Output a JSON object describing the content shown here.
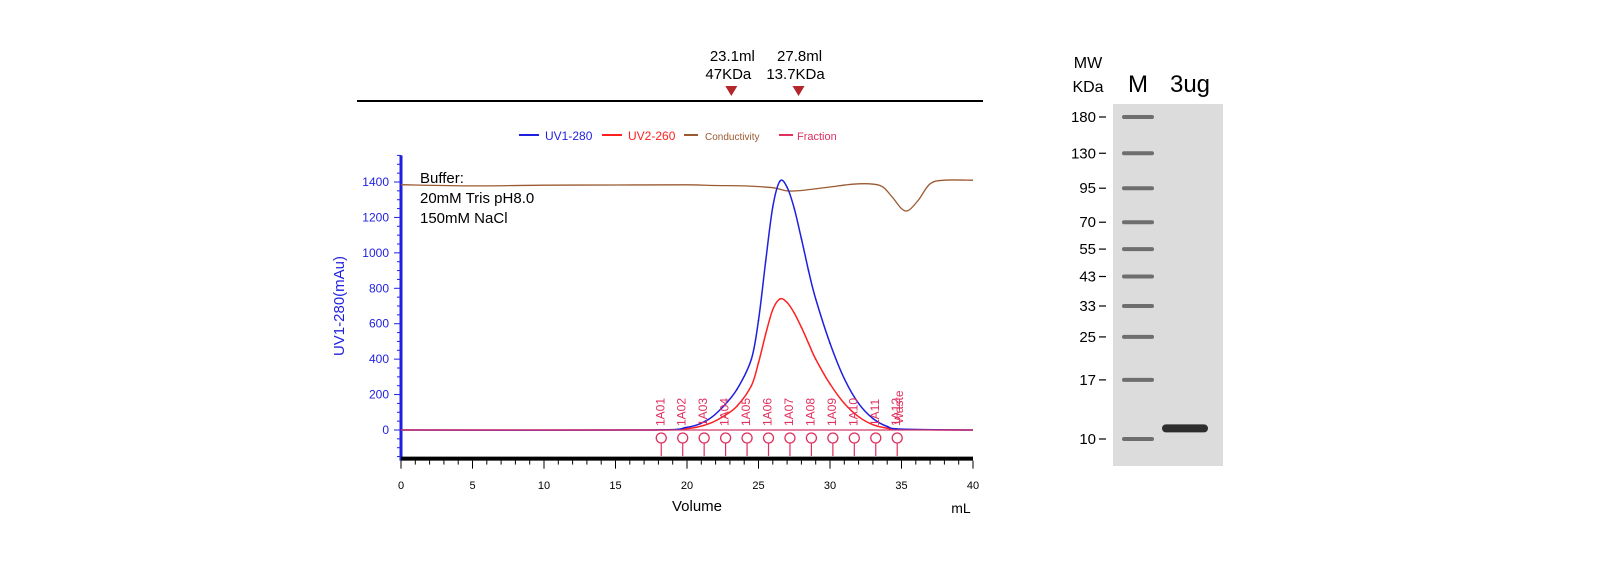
{
  "chart_data": [
    {
      "type": "line",
      "xlabel": "Volume",
      "xunit": "mL",
      "ylabel": "UV1-280(mAu)",
      "xlim": [
        0,
        40
      ],
      "ylim": [
        -150,
        1550
      ],
      "x_ticks": [
        0,
        5,
        10,
        15,
        20,
        25,
        30,
        35,
        40
      ],
      "y_ticks": [
        0,
        200,
        400,
        600,
        800,
        1000,
        1200,
        1400
      ],
      "legend": {
        "position": "top-center",
        "items": [
          "UV1-280",
          "UV2-260",
          "Conductivity",
          "Fraction"
        ]
      },
      "annotation": {
        "lines": [
          "Buffer:",
          "20mM Tris pH8.0",
          "150mM NaCl"
        ]
      },
      "markers": [
        {
          "volume": 23.1,
          "line1": "23.1ml",
          "line2": "47KDa"
        },
        {
          "volume": 27.8,
          "line1": "27.8ml",
          "line2": "13.7KDa"
        }
      ],
      "series": [
        {
          "name": "UV1-280",
          "color": "#1f1fe0",
          "x": [
            0,
            17,
            20,
            21.5,
            22.5,
            23.5,
            24.5,
            25,
            25.5,
            26,
            26.5,
            27,
            27.5,
            28,
            28.5,
            29,
            30,
            31,
            32,
            33,
            34,
            35,
            40
          ],
          "y": [
            0,
            0,
            15,
            60,
            130,
            230,
            400,
            620,
            950,
            1260,
            1405,
            1370,
            1250,
            1080,
            900,
            740,
            490,
            290,
            150,
            65,
            20,
            5,
            0
          ]
        },
        {
          "name": "UV2-260",
          "color": "#ff2020",
          "x": [
            0,
            17,
            20,
            21.5,
            22.5,
            23.5,
            24.5,
            25,
            25.5,
            26,
            26.5,
            27,
            27.5,
            28,
            28.5,
            29,
            30,
            31,
            32,
            33,
            34,
            35,
            40
          ],
          "y": [
            0,
            0,
            8,
            35,
            75,
            135,
            250,
            380,
            540,
            680,
            740,
            720,
            660,
            580,
            490,
            400,
            260,
            150,
            75,
            30,
            10,
            3,
            0
          ]
        },
        {
          "name": "Conductivity",
          "color": "#9b5a32",
          "x": [
            0,
            5,
            10,
            15,
            20,
            22,
            24,
            26,
            27,
            28,
            30,
            32,
            33.5,
            34.3,
            35,
            35.5,
            36.2,
            37,
            38,
            40
          ],
          "y": [
            1385,
            1378,
            1382,
            1383,
            1384,
            1380,
            1378,
            1368,
            1350,
            1352,
            1372,
            1390,
            1380,
            1320,
            1250,
            1240,
            1300,
            1390,
            1410,
            1410
          ]
        }
      ],
      "fractions": [
        {
          "label": "1A01",
          "volume": 18.2
        },
        {
          "label": "1A02",
          "volume": 19.7
        },
        {
          "label": "1A03",
          "volume": 21.2
        },
        {
          "label": "1A04",
          "volume": 22.7
        },
        {
          "label": "1A05",
          "volume": 24.2
        },
        {
          "label": "1A06",
          "volume": 25.7
        },
        {
          "label": "1A07",
          "volume": 27.2
        },
        {
          "label": "1A08",
          "volume": 28.7
        },
        {
          "label": "1A09",
          "volume": 30.2
        },
        {
          "label": "1A10",
          "volume": 31.7
        },
        {
          "label": "1A11",
          "volume": 33.2
        },
        {
          "label": "1A12",
          "volume": 34.7
        },
        {
          "label": "Waste",
          "volume": 34.9
        }
      ]
    },
    {
      "type": "gel",
      "column_labels": [
        "M",
        "3ug"
      ],
      "axis_title": [
        "MW",
        "KDa"
      ],
      "ladder": [
        {
          "label": "180",
          "kda": 180
        },
        {
          "label": "130",
          "kda": 130
        },
        {
          "label": "95",
          "kda": 95
        },
        {
          "label": "70",
          "kda": 70
        },
        {
          "label": "55",
          "kda": 55
        },
        {
          "label": "43",
          "kda": 43
        },
        {
          "label": "33",
          "kda": 33
        },
        {
          "label": "25",
          "kda": 25
        },
        {
          "label": "17",
          "kda": 17
        },
        {
          "label": "10",
          "kda": 10
        }
      ],
      "sample_band_kda": 11
    }
  ]
}
